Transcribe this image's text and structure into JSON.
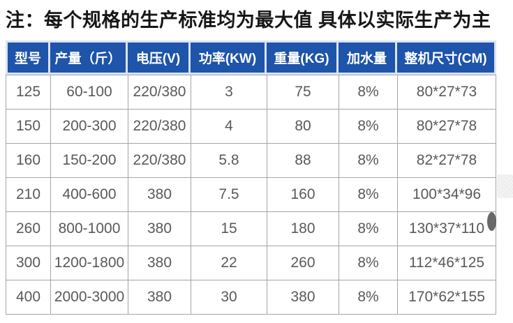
{
  "note": "注：每个规格的生产标准均为最大值 具体以实际生产为主",
  "table": {
    "headers": [
      "型号",
      "产量（斤）",
      "电压(V)",
      "功率(KW)",
      "重量(KG)",
      "加水量",
      "整机尺寸(CM)"
    ],
    "rows": [
      [
        "125",
        "60-100",
        "220/380",
        "3",
        "75",
        "8%",
        "80*27*73"
      ],
      [
        "150",
        "200-300",
        "220/380",
        "4",
        "80",
        "8%",
        "80*27*78"
      ],
      [
        "160",
        "150-200",
        "220/380",
        "5.8",
        "88",
        "8%",
        "82*27*78"
      ],
      [
        "210",
        "400-600",
        "380",
        "7.5",
        "160",
        "8%",
        "100*34*96"
      ],
      [
        "260",
        "800-1000",
        "380",
        "15",
        "180",
        "8%",
        "130*37*110"
      ],
      [
        "300",
        "1200-1800",
        "380",
        "22",
        "260",
        "8%",
        "112*46*125"
      ],
      [
        "400",
        "2000-3000",
        "380",
        "30",
        "380",
        "8%",
        "170*62*155"
      ]
    ]
  },
  "colors": {
    "header_bg": "#1e54a9",
    "header_text": "#ffffff",
    "header_gap": "#d9e3f3",
    "body_text": "#595959",
    "grid_border": "#a5a5a5",
    "note_text": "#161616"
  }
}
